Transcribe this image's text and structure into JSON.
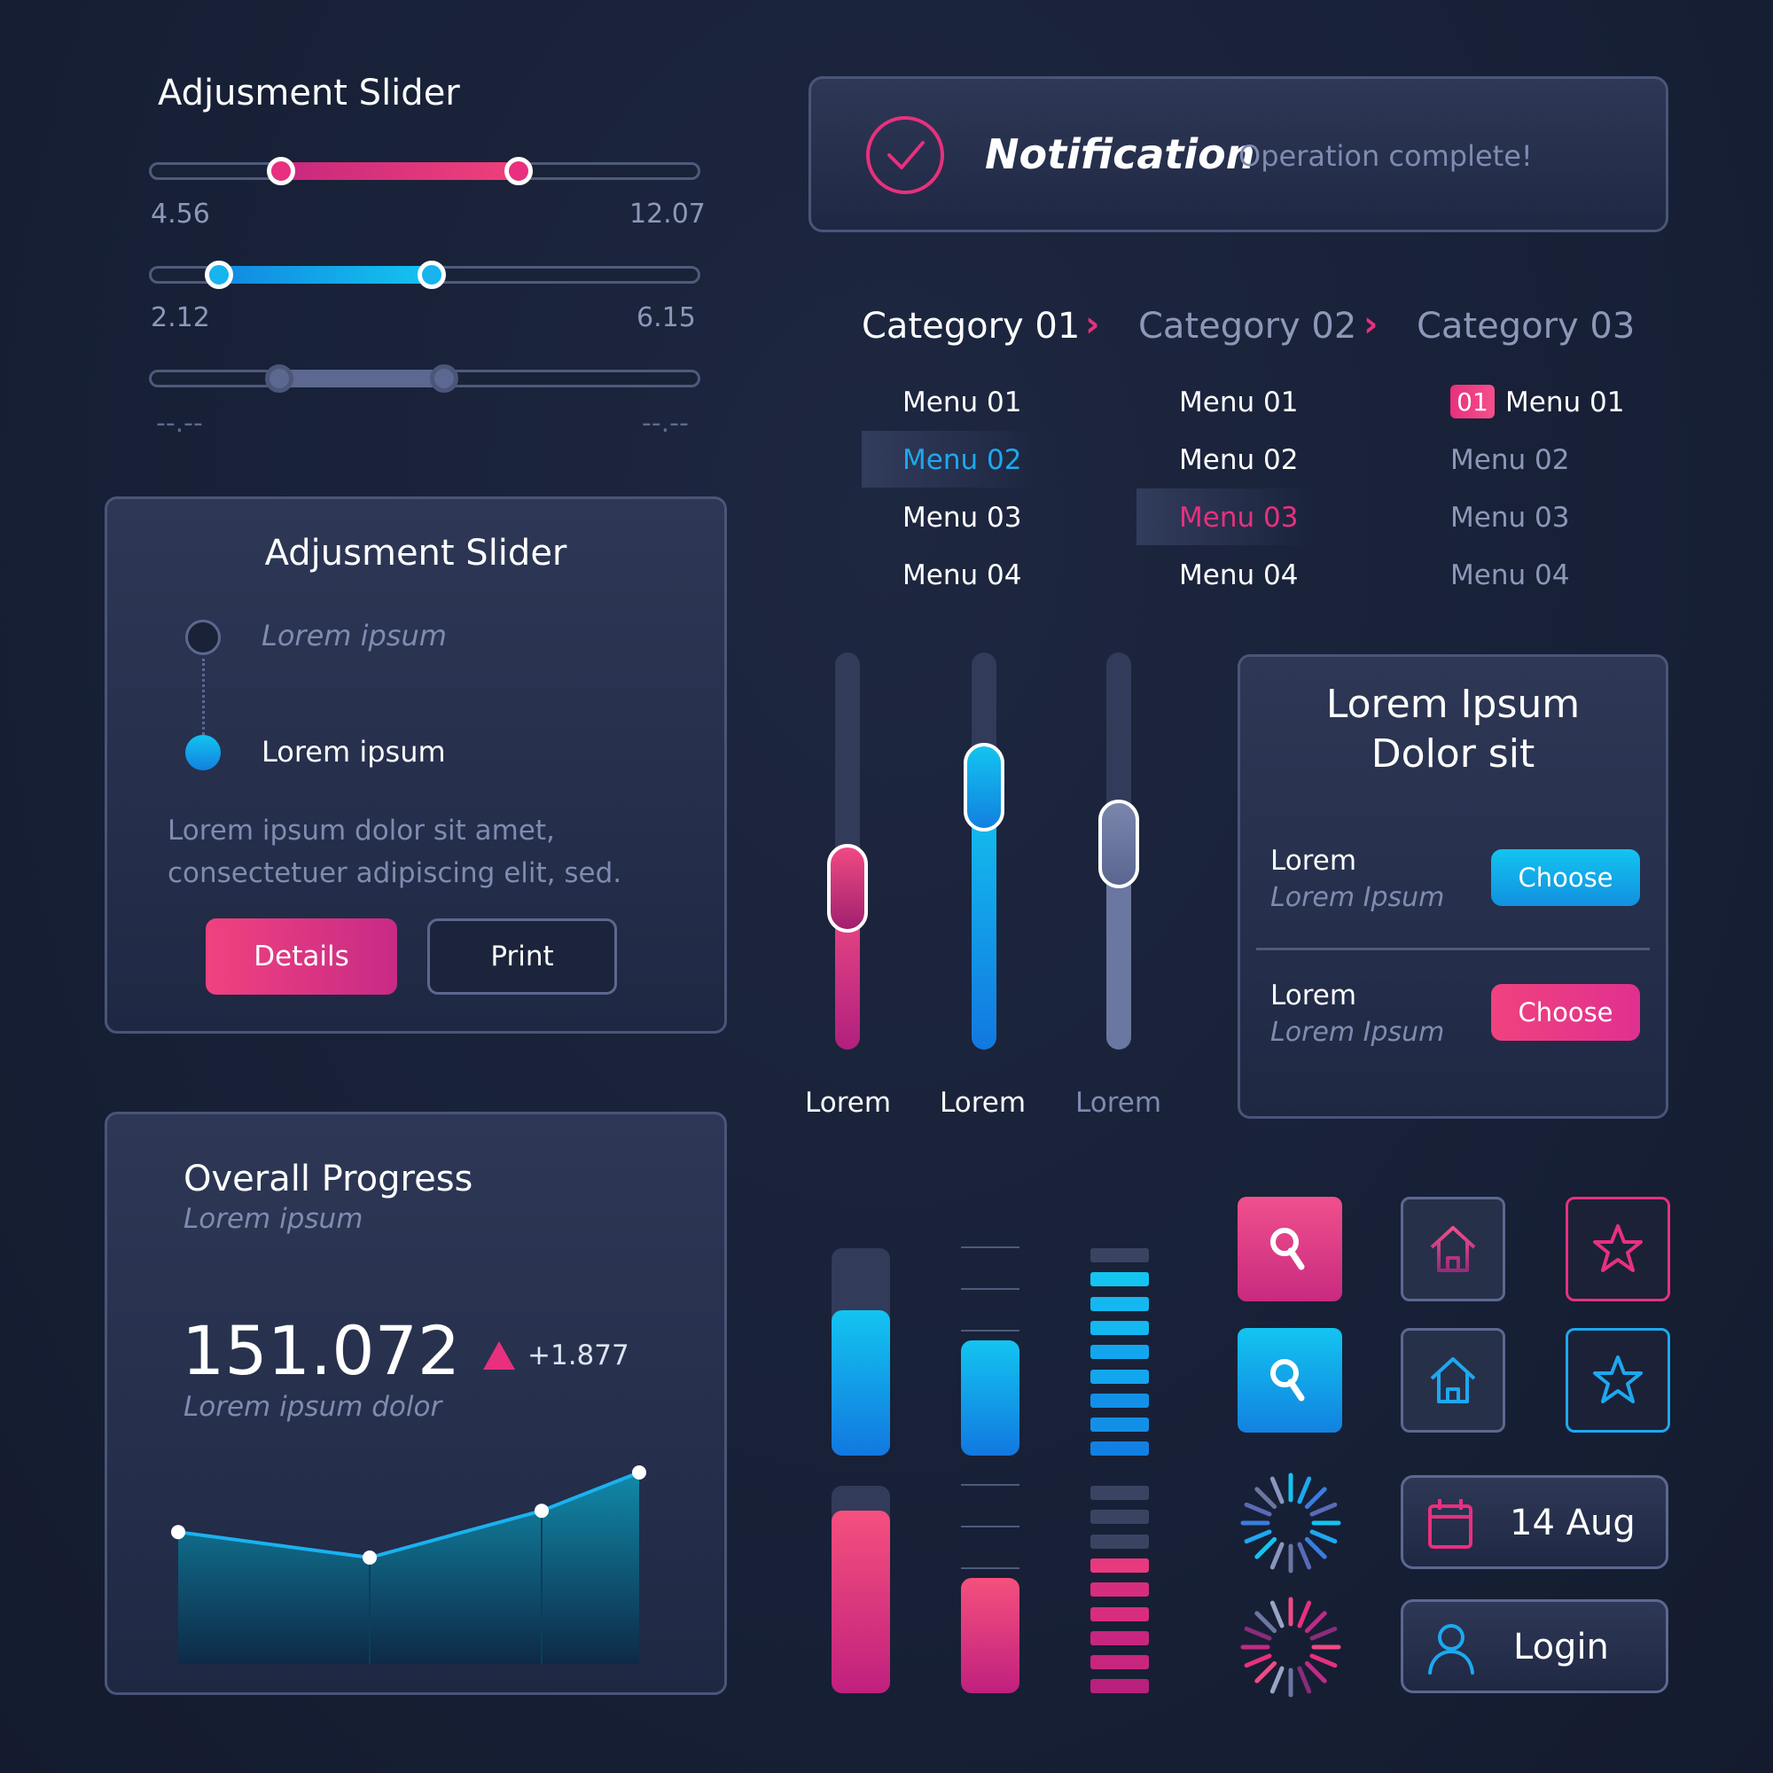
{
  "top_sliders": {
    "title": "Adjusment Slider",
    "slider1": {
      "min_label": "4.56",
      "max_label": "12.07",
      "color": "#e8307e"
    },
    "slider2": {
      "min_label": "2.12",
      "max_label": "6.15",
      "color": "#1ea8f0"
    },
    "slider3": {
      "min_label": "--.--",
      "max_label": "--.--",
      "color": "#6a77a0"
    }
  },
  "notification": {
    "title": "Notification",
    "message": "Operation complete!",
    "icon": "check-circle-icon"
  },
  "categories": {
    "tabs": [
      "Category 01",
      "Category 02",
      "Category 03"
    ],
    "col1": [
      "Menu 01",
      "Menu 02",
      "Menu 03",
      "Menu 04"
    ],
    "col2": [
      "Menu 01",
      "Menu 02",
      "Menu 03",
      "Menu 04"
    ],
    "col3": [
      "Menu 01",
      "Menu 02",
      "Menu 03",
      "Menu 04"
    ],
    "col3_badge": "01"
  },
  "stepper_card": {
    "title": "Adjusment Slider",
    "step1": "Lorem ipsum",
    "step2": "Lorem ipsum",
    "body_line1": "Lorem ipsum dolor sit amet,",
    "body_line2": "consectetuer adipiscing elit, sed.",
    "details_label": "Details",
    "print_label": "Print"
  },
  "vertical_sliders": {
    "labels": [
      "Lorem",
      "Lorem",
      "Lorem"
    ],
    "levels": [
      0.42,
      0.7,
      0.55
    ]
  },
  "choose_card": {
    "title_line1": "Lorem Ipsum",
    "title_line2": "Dolor sit",
    "row1": {
      "label": "Lorem",
      "sub": "Lorem Ipsum",
      "button": "Choose"
    },
    "row2": {
      "label": "Lorem",
      "sub": "Lorem Ipsum",
      "button": "Choose"
    }
  },
  "progress_card": {
    "title": "Overall Progress",
    "subtitle": "Lorem ipsum",
    "value": "151.072",
    "delta": "+1.877",
    "caption": "Lorem ipsum dolor"
  },
  "chart_data": {
    "type": "area",
    "x": [
      0,
      1,
      2,
      3
    ],
    "values": [
      0.62,
      0.5,
      0.72,
      0.9
    ],
    "ylim": [
      0,
      1
    ]
  },
  "level_bars": {
    "blue_fill": 0.7,
    "pink_fill": 0.88,
    "blue_small_fill": 0.55,
    "pink_small_fill": 0.55,
    "blue_segments_lit": 8,
    "pink_segments_lit": 6
  },
  "icons": {
    "row1": [
      "search-icon",
      "home-icon",
      "star-icon"
    ],
    "row2": [
      "search-icon",
      "home-icon",
      "star-icon"
    ]
  },
  "date_button": {
    "label": "14 Aug",
    "icon": "calendar-icon"
  },
  "login_button": {
    "label": "Login",
    "icon": "user-icon"
  },
  "colors": {
    "pink": "#e8307e",
    "blue": "#1ea8f0",
    "gray": "#6a77a0"
  }
}
